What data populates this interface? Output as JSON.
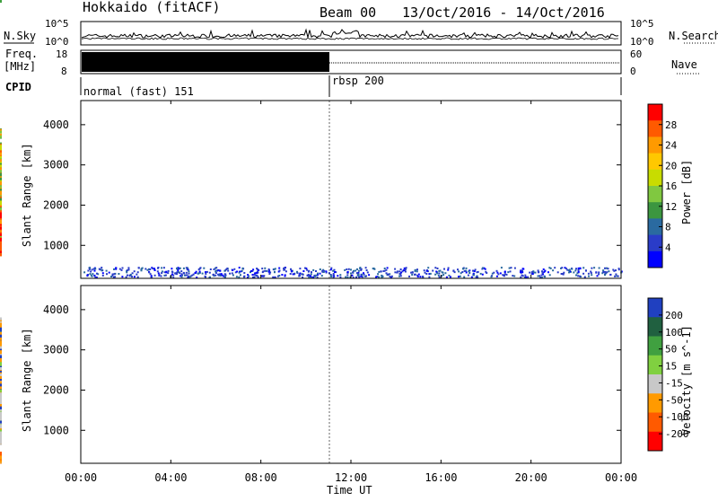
{
  "header": {
    "radar": "Hokkaido (fitACF)",
    "beam": "Beam 00",
    "date_range": "13/Oct/2016 - 14/Oct/2016"
  },
  "noise_panel": {
    "left_label": "N.Sky",
    "right_label": "N.Search",
    "left_ticks": [
      "10^5",
      "10^0"
    ],
    "right_ticks": [
      "10^5",
      "10^0"
    ]
  },
  "freq_panel": {
    "left_label_1": "Freq.",
    "left_label_2": "[MHz]",
    "left_ticks": [
      "18",
      "8"
    ],
    "right_label": "Nave",
    "right_ticks": [
      "60",
      "0"
    ]
  },
  "cpid_panel": {
    "label": "CPID",
    "modes": [
      "normal (fast) 151",
      "rbsp 200"
    ],
    "switch_hour": 11.0
  },
  "power_panel": {
    "ylabel": "Slant Range [km]",
    "yticks": [
      "4000",
      "3000",
      "2000",
      "1000"
    ],
    "colorbar_label": "Power [dB]",
    "colorbar_ticks": [
      "28",
      "24",
      "20",
      "16",
      "12",
      "8",
      "4"
    ],
    "colors": [
      "#ff0000",
      "#ff5a00",
      "#ff9a00",
      "#ffc800",
      "#c8dc00",
      "#80c840",
      "#3c9640",
      "#2a6aa0",
      "#2a3cc8",
      "#0000ff"
    ]
  },
  "velocity_panel": {
    "ylabel": "Slant Range [km]",
    "yticks": [
      "4000",
      "3000",
      "2000",
      "1000"
    ],
    "colorbar_label": "Velocity [m s^-1]",
    "colorbar_ticks": [
      "200",
      "100",
      "50",
      "15",
      "-15",
      "-50",
      "-100",
      "-200"
    ],
    "colors": [
      "#2040c0",
      "#206040",
      "#40a040",
      "#80d040",
      "#c8c8c8",
      "#ff9a00",
      "#ff5a00",
      "#ff0000"
    ]
  },
  "x_axis": {
    "ticks": [
      "00:00",
      "04:00",
      "08:00",
      "12:00",
      "16:00",
      "20:00",
      "00:00"
    ],
    "label": "Time UT"
  },
  "chart_data": {
    "type": "heatmap",
    "title": "Hokkaido (fitACF) Beam 00 13/Oct/2016 - 14/Oct/2016",
    "xlabel": "Time UT",
    "ylabel": "Slant Range [km]",
    "xlim_hours": [
      0,
      24
    ],
    "ylim_km": [
      180,
      4600
    ],
    "series": [
      {
        "name": "Power",
        "unit": "dB",
        "clim": [
          0,
          30
        ]
      },
      {
        "name": "Velocity",
        "unit": "m s^-1",
        "clim": [
          -200,
          200
        ]
      }
    ]
  }
}
